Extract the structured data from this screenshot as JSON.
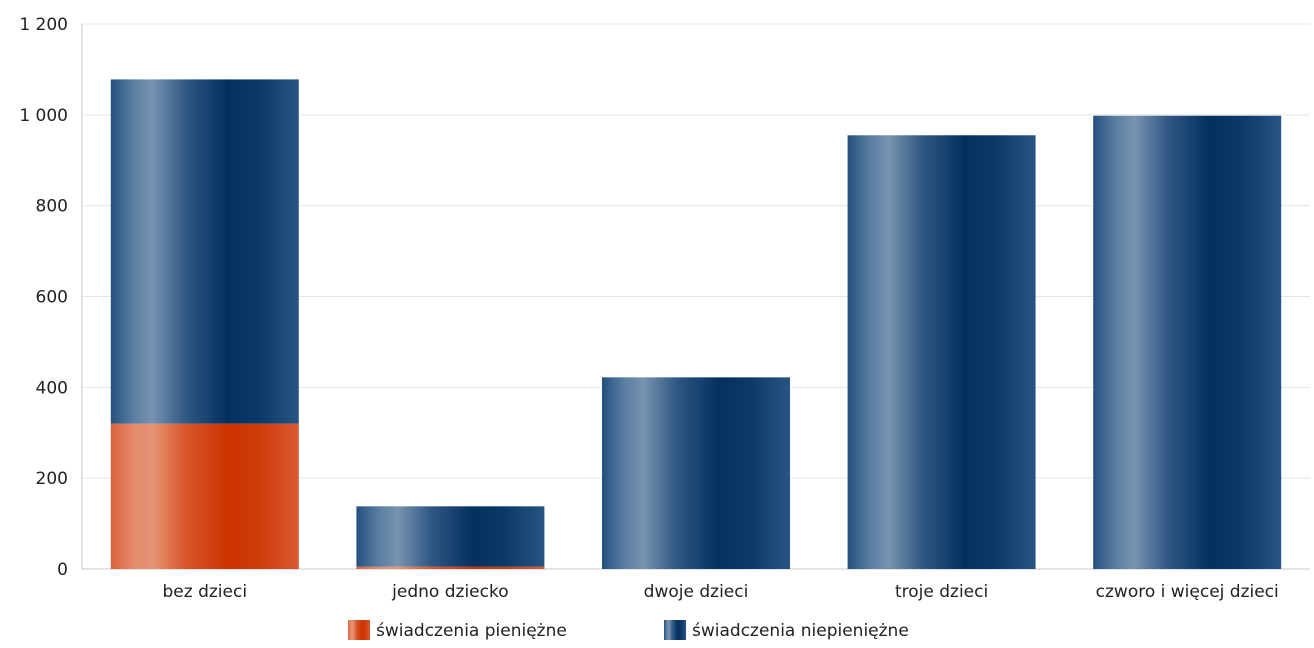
{
  "chart_data": {
    "type": "bar",
    "stacked": true,
    "categories": [
      "bez dzieci",
      "jedno dziecko",
      "dwoje dzieci",
      "troje dzieci",
      "czworo i więcej dzieci"
    ],
    "series": [
      {
        "name": "świadczenia pieniężne",
        "color": "#cc3300",
        "values": [
          320,
          5,
          0,
          0,
          0
        ]
      },
      {
        "name": "świadczenia niepieniężne",
        "color": "#003366",
        "values": [
          758,
          133,
          422,
          955,
          998
        ]
      }
    ],
    "yticks": [
      "0",
      "200",
      "400",
      "600",
      "800",
      "1 000",
      "1 200"
    ],
    "ylim": [
      0,
      1200
    ],
    "grid": true,
    "legend_position": "bottom",
    "xlabel": "",
    "ylabel": ""
  }
}
